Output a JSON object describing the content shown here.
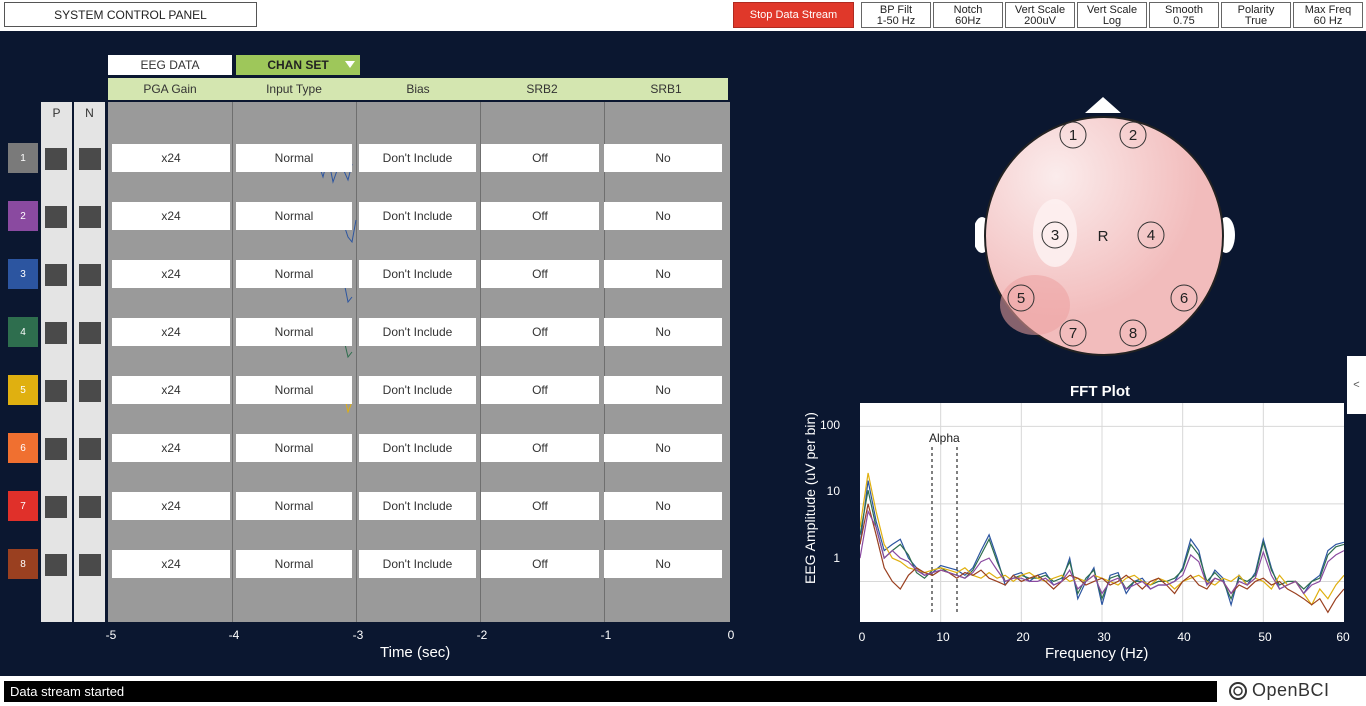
{
  "top_bar": {
    "system_control_panel": "SYSTEM CONTROL PANEL",
    "stop_stream": "Stop Data Stream",
    "controls": [
      {
        "title": "BP Filt",
        "value": "1-50 Hz"
      },
      {
        "title": "Notch",
        "value": "60Hz"
      },
      {
        "title": "Vert Scale",
        "value": "200uV"
      },
      {
        "title": "Vert Scale",
        "value": "Log"
      },
      {
        "title": "Smooth",
        "value": "0.75"
      },
      {
        "title": "Polarity",
        "value": "True"
      },
      {
        "title": "Max Freq",
        "value": "60 Hz"
      }
    ]
  },
  "tabs": {
    "eeg": "EEG DATA",
    "chan_set": "CHAN SET"
  },
  "headers": [
    "PGA Gain",
    "Input Type",
    "Bias",
    "SRB2",
    "SRB1"
  ],
  "pn": {
    "p": "P",
    "n": "N"
  },
  "channels": [
    {
      "num": "1",
      "color": "#7a7a7a",
      "gain": "x24",
      "input": "Normal",
      "bias": "Don't Include",
      "srb2": "Off",
      "srb1": "No"
    },
    {
      "num": "2",
      "color": "#8a4aa0",
      "gain": "x24",
      "input": "Normal",
      "bias": "Don't Include",
      "srb2": "Off",
      "srb1": "No"
    },
    {
      "num": "3",
      "color": "#2c55a0",
      "gain": "x24",
      "input": "Normal",
      "bias": "Don't Include",
      "srb2": "Off",
      "srb1": "No"
    },
    {
      "num": "4",
      "color": "#2e6e4e",
      "gain": "x24",
      "input": "Normal",
      "bias": "Don't Include",
      "srb2": "Off",
      "srb1": "No"
    },
    {
      "num": "5",
      "color": "#e0b010",
      "gain": "x24",
      "input": "Normal",
      "bias": "Don't Include",
      "srb2": "Off",
      "srb1": "No"
    },
    {
      "num": "6",
      "color": "#f07030",
      "gain": "x24",
      "input": "Normal",
      "bias": "Don't Include",
      "srb2": "Off",
      "srb1": "No"
    },
    {
      "num": "7",
      "color": "#e0302a",
      "gain": "x24",
      "input": "Normal",
      "bias": "Don't Include",
      "srb2": "Off",
      "srb1": "No"
    },
    {
      "num": "8",
      "color": "#9a4020",
      "gain": "x24",
      "input": "Normal",
      "bias": "Don't Include",
      "srb2": "Off",
      "srb1": "No"
    }
  ],
  "time_axis": {
    "ticks": [
      "-5",
      "-4",
      "-3",
      "-2",
      "-1",
      "0"
    ],
    "label": "Time (sec)"
  },
  "head_plot": {
    "labels": [
      "1",
      "2",
      "3",
      "R",
      "4",
      "5",
      "6",
      "7",
      "8"
    ]
  },
  "fft": {
    "title": "FFT Plot",
    "ylabel": "EEG Amplitude (uV per bin)",
    "xlabel": "Frequency (Hz)",
    "alpha_label": "Alpha",
    "yticks": [
      "100",
      "10",
      "1"
    ],
    "xticks": [
      "0",
      "10",
      "20",
      "30",
      "40",
      "50",
      "60"
    ]
  },
  "chart_data": {
    "type": "line",
    "title": "FFT Plot",
    "xlabel": "Frequency (Hz)",
    "ylabel": "EEG Amplitude (uV per bin)",
    "xlim": [
      0,
      60
    ],
    "ylim": [
      0.3,
      200
    ],
    "yscale": "log",
    "grid": true,
    "x": [
      0,
      1,
      2,
      3,
      4,
      5,
      6,
      7,
      8,
      9,
      10,
      11,
      12,
      13,
      14,
      15,
      16,
      17,
      18,
      19,
      20,
      21,
      22,
      23,
      24,
      25,
      26,
      27,
      28,
      29,
      30,
      31,
      32,
      33,
      34,
      35,
      36,
      37,
      38,
      39,
      40,
      41,
      42,
      43,
      44,
      45,
      46,
      47,
      48,
      49,
      50,
      51,
      52,
      53,
      54,
      55,
      56,
      57,
      58,
      59,
      60
    ],
    "series": [
      {
        "color": "#2c55a0",
        "values": [
          3,
          20,
          6,
          2.5,
          3,
          3.5,
          2,
          1.5,
          1.2,
          1.3,
          1.6,
          1.5,
          1.4,
          1.2,
          1.5,
          2.5,
          4,
          2,
          0.9,
          1.2,
          1.3,
          1,
          1.2,
          1.3,
          0.9,
          1,
          2,
          0.6,
          1,
          1.5,
          0.5,
          1.2,
          1.3,
          0.7,
          1,
          1.1,
          0.8,
          0.9,
          0.9,
          1,
          1.5,
          3.5,
          2.5,
          0.9,
          1.4,
          1.1,
          0.5,
          1.2,
          0.9,
          1.3,
          3.5,
          1.5,
          0.8,
          0.9,
          1,
          0.7,
          1,
          1.2,
          2.5,
          3,
          3.2
        ]
      },
      {
        "color": "#2e6e4e",
        "values": [
          4,
          15,
          5,
          2,
          2.5,
          3,
          2.2,
          1.3,
          1.1,
          1.4,
          1.5,
          1.3,
          1.2,
          1.1,
          1.4,
          2.2,
          3.5,
          1.8,
          1,
          1.1,
          1.2,
          1.1,
          1.1,
          1.2,
          1,
          1.1,
          1.8,
          0.7,
          1.1,
          1.4,
          0.6,
          1.1,
          1.2,
          0.8,
          1,
          1,
          0.9,
          1,
          1,
          1.1,
          1.4,
          3,
          2.2,
          1,
          1.3,
          1,
          0.6,
          1.1,
          1,
          1.2,
          3.2,
          1.4,
          0.9,
          1,
          1,
          0.8,
          1,
          1.1,
          2.2,
          2.8,
          3
        ]
      },
      {
        "color": "#e0b010",
        "values": [
          5,
          25,
          8,
          3,
          2,
          1.8,
          1.5,
          1.4,
          1.3,
          1.4,
          1.5,
          1.4,
          1.3,
          1.5,
          1.2,
          1.1,
          1.3,
          1.1,
          1.2,
          1,
          1.2,
          1.3,
          1.1,
          1,
          1.1,
          1.2,
          1,
          1.1,
          1,
          1.2,
          1.1,
          1,
          0.9,
          1.1,
          1.2,
          1,
          0.9,
          1.1,
          1,
          0.8,
          1,
          1.1,
          1.2,
          1,
          0.9,
          1.1,
          1,
          1.2,
          0.9,
          1.1,
          1,
          0.8,
          1.2,
          0.9,
          1,
          0.7,
          0.5,
          0.8,
          0.6,
          0.9,
          1.2
        ]
      },
      {
        "color": "#9a4020",
        "values": [
          3,
          10,
          4,
          1.5,
          1,
          0.8,
          1.2,
          1.5,
          1.3,
          1.2,
          1.4,
          1.3,
          1.1,
          1.3,
          1.2,
          1.4,
          1.1,
          1,
          0.9,
          1.2,
          1,
          1.1,
          1.2,
          1,
          0.8,
          1,
          1.2,
          1.1,
          0.9,
          1,
          1.1,
          0.9,
          1,
          1.2,
          1,
          0.8,
          1,
          1.1,
          0.9,
          0.7,
          1,
          1.2,
          0.9,
          0.8,
          1.1,
          1,
          0.7,
          0.9,
          0.8,
          1,
          1.1,
          0.9,
          1,
          0.8,
          0.7,
          0.6,
          0.5,
          0.6,
          0.4,
          0.6,
          0.8
        ]
      },
      {
        "color": "#8a4aa0",
        "values": [
          2,
          8,
          5,
          2,
          2.5,
          2,
          1.8,
          1.4,
          1.2,
          1.3,
          1.4,
          1.3,
          1.2,
          1.1,
          1.3,
          1.8,
          2,
          1.4,
          1,
          1.1,
          1.1,
          1,
          1,
          1.1,
          0.9,
          1,
          1.4,
          0.8,
          1,
          1.2,
          0.7,
          1,
          1.1,
          0.8,
          0.9,
          1,
          0.8,
          0.9,
          0.9,
          1,
          1.2,
          2.2,
          1.8,
          0.9,
          1.1,
          1,
          0.7,
          1,
          0.9,
          1.1,
          2.4,
          1.2,
          0.8,
          0.9,
          1,
          0.7,
          0.9,
          1,
          1.8,
          2.2,
          2.5
        ]
      }
    ]
  },
  "status": "Data stream started",
  "logo": "OpenBCI",
  "side_tab": "<"
}
